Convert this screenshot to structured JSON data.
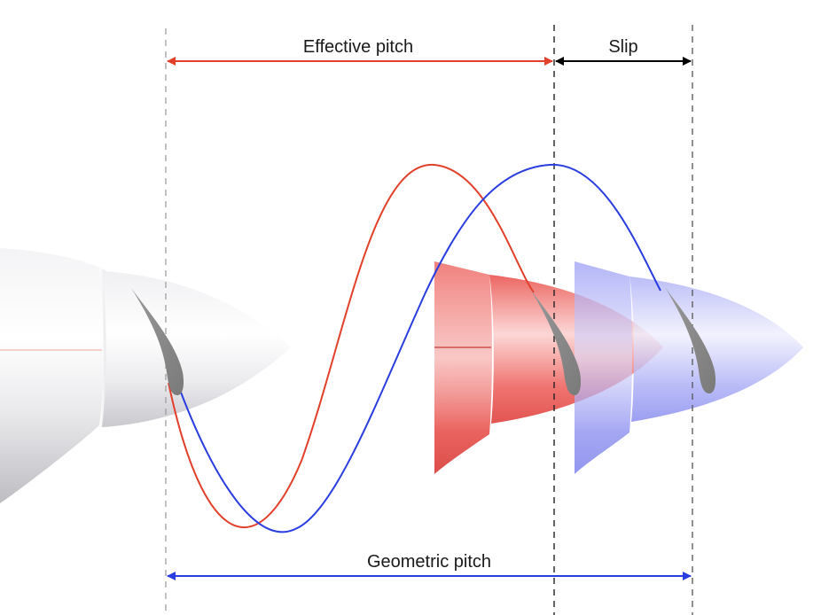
{
  "labels": {
    "effective_pitch": "Effective pitch",
    "slip": "Slip",
    "geometric_pitch": "Geometric pitch"
  },
  "colors": {
    "effective_pitch": "#e2402a",
    "geometric_pitch": "#2a3de0",
    "slip": "#000000",
    "blade": "#8c8c8c",
    "original_hub": "#f2f2f2",
    "effective_hub": "#ec5a5a",
    "geometric_hub": "#9a9cf2"
  },
  "icons": {
    "blade": "propeller-blade-icon",
    "hub": "spinner-hub-icon"
  }
}
